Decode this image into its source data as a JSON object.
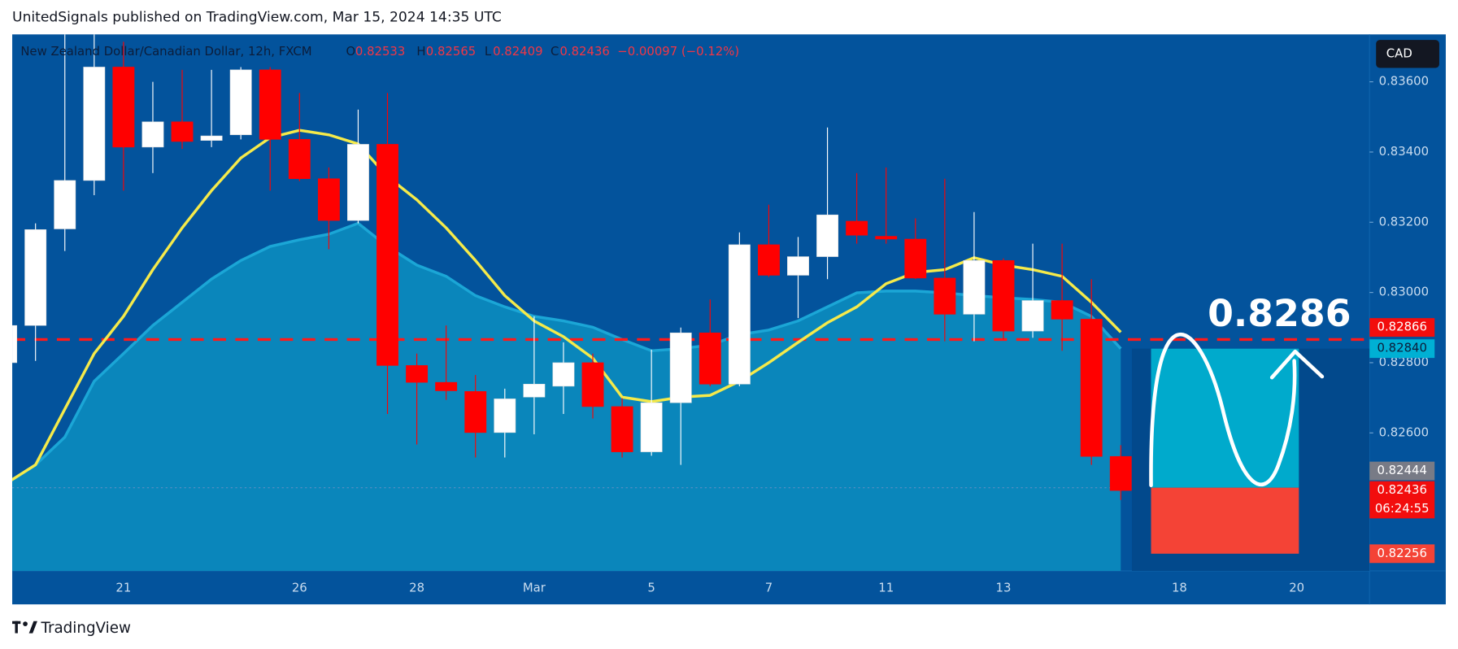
{
  "header": "UnitedSignals published on TradingView.com, Mar 15, 2024 14:35 UTC",
  "footer": "TradingView",
  "currency_button": "CAD",
  "chart_data": {
    "type": "candlestick",
    "legend": {
      "symbol": "New Zealand Dollar/Canadian Dollar, 12h, FXCM",
      "open": "O",
      "high": "H",
      "low": "L",
      "close": "C",
      "change": "−0.00097 (−0.12%)"
    },
    "categories": [
      null,
      null,
      null,
      null,
      "21",
      null,
      null,
      null,
      null,
      null,
      "26",
      null,
      null,
      null,
      "28",
      null,
      null,
      null,
      "Mar",
      null,
      null,
      null,
      "5",
      null,
      null,
      null,
      "7",
      null,
      null,
      null,
      "11",
      null,
      null,
      null,
      "13",
      null,
      null,
      null,
      null,
      null,
      "18",
      null,
      null,
      null,
      "20",
      null
    ],
    "open": [
      0.828,
      0.82906,
      0.83181,
      0.83319,
      0.83642,
      0.83414,
      0.83486,
      0.83433,
      0.83449,
      0.83634,
      0.83436,
      0.83324,
      0.83205,
      0.83422,
      0.82792,
      0.82744,
      0.82718,
      0.82601,
      0.82702,
      0.82733,
      0.828,
      0.82675,
      0.82546,
      0.82686,
      0.82885,
      0.82739,
      0.83136,
      0.83049,
      0.83102,
      0.83203,
      0.8316,
      0.83152,
      0.83041,
      0.82938,
      0.83091,
      0.8289,
      0.82977,
      0.82924,
      0.82533,
      null,
      null,
      null,
      null,
      null,
      null,
      null
    ],
    "high": [
      0.8291,
      0.83197,
      0.8375,
      0.8375,
      0.83714,
      0.836,
      0.83634,
      0.83634,
      0.83642,
      0.83642,
      0.83568,
      0.83356,
      0.83521,
      0.83568,
      0.82826,
      0.82906,
      0.82765,
      0.82726,
      0.82932,
      0.82858,
      0.82826,
      0.82699,
      0.82837,
      0.829,
      0.8298,
      0.83171,
      0.8325,
      0.83158,
      0.8347,
      0.8334,
      0.83356,
      0.83211,
      0.83324,
      0.83229,
      0.83097,
      0.83139,
      0.83139,
      0.83038,
      0.82565,
      null,
      null,
      null,
      null,
      null,
      null,
      null
    ],
    "low": [
      0.8279,
      0.82805,
      0.83118,
      0.83277,
      0.8329,
      0.8334,
      0.83409,
      0.83414,
      0.83436,
      0.8329,
      0.83317,
      0.83123,
      0.83197,
      0.82654,
      0.82567,
      0.82694,
      0.8253,
      0.8253,
      0.82596,
      0.82654,
      0.82641,
      0.8253,
      0.82535,
      0.82509,
      0.82733,
      0.82733,
      0.83044,
      0.82927,
      0.83038,
      0.83139,
      0.83139,
      0.83038,
      0.82861,
      0.82861,
      0.82866,
      0.82871,
      0.82834,
      0.82509,
      0.82409,
      null,
      null,
      null,
      null,
      null,
      null,
      null
    ],
    "close": [
      0.82906,
      0.83179,
      0.83319,
      0.83642,
      0.83414,
      0.83486,
      0.8343,
      0.83446,
      0.83634,
      0.83436,
      0.83324,
      0.83205,
      0.83422,
      0.82792,
      0.82744,
      0.8272,
      0.82601,
      0.82697,
      0.82739,
      0.828,
      0.82675,
      0.82546,
      0.82686,
      0.82885,
      0.82739,
      0.83136,
      0.83049,
      0.83102,
      0.83221,
      0.83163,
      0.83152,
      0.83041,
      0.82938,
      0.83091,
      0.8289,
      0.82977,
      0.82924,
      0.82533,
      0.82436,
      null,
      null,
      null,
      null,
      null,
      null,
      null
    ],
    "up_color": "#ffffff",
    "down_color": "#ff0000",
    "area": {
      "color": "#0a86bb",
      "edge_color": "#1ba6d6",
      "values": [
        0.82456,
        0.82509,
        0.82588,
        0.82747,
        0.82826,
        0.82906,
        0.82972,
        0.83038,
        0.83091,
        0.83131,
        0.8315,
        0.83166,
        0.83197,
        0.83131,
        0.83078,
        0.83046,
        0.82991,
        0.82959,
        0.82932,
        0.82919,
        0.82901,
        0.82866,
        0.82834,
        0.8284,
        0.8285,
        0.8288,
        0.82893,
        0.82919,
        0.82959,
        0.82999,
        0.83004,
        0.83004,
        0.82999,
        0.82991,
        0.82985,
        0.8298,
        0.82972,
        0.82932,
        0.8284,
        null,
        null,
        null,
        null,
        null,
        null,
        null
      ]
    },
    "line": {
      "color": "#f5ea4a",
      "values": [
        0.82456,
        0.82509,
        0.82668,
        0.82826,
        0.82932,
        0.83065,
        0.83184,
        0.8329,
        0.83383,
        0.83441,
        0.83462,
        0.83449,
        0.83423,
        0.8333,
        0.83264,
        0.83184,
        0.83091,
        0.82991,
        0.82919,
        0.82874,
        0.82813,
        0.82702,
        0.82689,
        0.82702,
        0.82707,
        0.82747,
        0.828,
        0.82858,
        0.82914,
        0.82959,
        0.83025,
        0.83057,
        0.83065,
        0.83099,
        0.83078,
        0.83065,
        0.83046,
        0.82972,
        0.82887,
        null,
        null,
        null,
        null,
        null,
        null,
        null
      ]
    },
    "ylim": [
      0.82207,
      0.83735
    ],
    "yticks": [
      {
        "value": 0.826,
        "label": "0.82600"
      },
      {
        "value": 0.828,
        "label": "0.82800"
      },
      {
        "value": 0.83,
        "label": "0.83000"
      },
      {
        "value": 0.832,
        "label": "0.83200"
      },
      {
        "value": 0.834,
        "label": "0.83400"
      },
      {
        "value": 0.836,
        "label": "0.83600"
      }
    ],
    "price_line": {
      "value": 0.82866,
      "label": "0.82866",
      "color": "#ff1a1a"
    },
    "position": {
      "target": {
        "value": 0.8284,
        "label": "0.82840"
      },
      "entry": {
        "value": 0.82444,
        "label": "0.82444"
      },
      "stop": {
        "value": 0.82256,
        "label": "0.82256"
      },
      "target_color": "#00aacc",
      "stop_color": "#f44336"
    },
    "countdown": "06:24:55",
    "annotation": "0.8286"
  }
}
